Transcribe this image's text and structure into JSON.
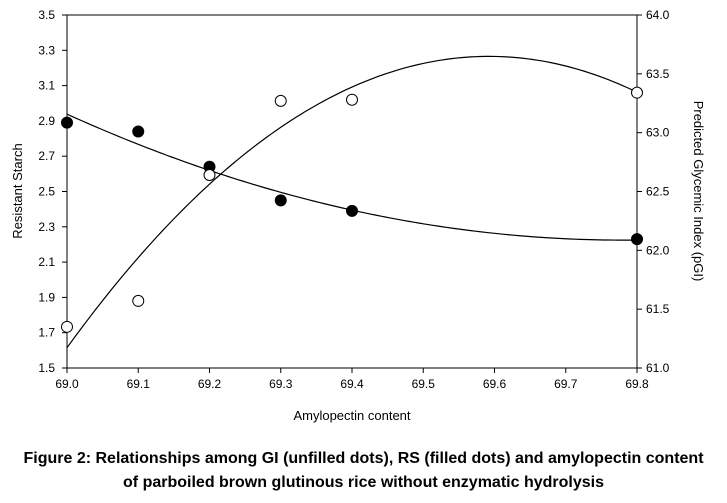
{
  "chart_data": {
    "type": "scatter",
    "xlabel": "Amylopectin content",
    "ylabel": "Resistant Starch",
    "y2label": "Predicted Glycemic Index (pGI)",
    "xlim": [
      69.0,
      69.8
    ],
    "ylim": [
      1.5,
      3.5
    ],
    "y2lim": [
      61.0,
      64.0
    ],
    "x_ticks": [
      "69.0",
      "69.1",
      "69.2",
      "69.3",
      "69.4",
      "69.5",
      "69.6",
      "69.7",
      "69.8"
    ],
    "y_ticks": [
      "1.5",
      "1.7",
      "1.9",
      "2.1",
      "2.3",
      "2.5",
      "2.7",
      "2.9",
      "3.1",
      "3.3",
      "3.5"
    ],
    "y2_ticks": [
      "61.0",
      "61.5",
      "62.0",
      "62.5",
      "63.0",
      "63.5",
      "64.0"
    ],
    "grid": false,
    "series": [
      {
        "axis": "left",
        "marker": "filled-circle",
        "x": [
          69.0,
          69.1,
          69.2,
          69.3,
          69.4,
          69.8
        ],
        "y": [
          2.89,
          2.84,
          2.64,
          2.45,
          2.39,
          2.23
        ],
        "trend": "quadratic"
      },
      {
        "axis": "right",
        "marker": "open-circle",
        "x": [
          69.0,
          69.1,
          69.2,
          69.3,
          69.4,
          69.8
        ],
        "y": [
          61.35,
          61.57,
          62.64,
          63.27,
          63.28,
          63.34
        ],
        "trend": "quadratic"
      }
    ]
  },
  "caption": {
    "line1": "Figure 2: Relationships among GI (unfilled dots), RS (filled dots) and amylopectin content",
    "line2": "of parboiled brown glutinous rice without enzymatic hydrolysis"
  }
}
